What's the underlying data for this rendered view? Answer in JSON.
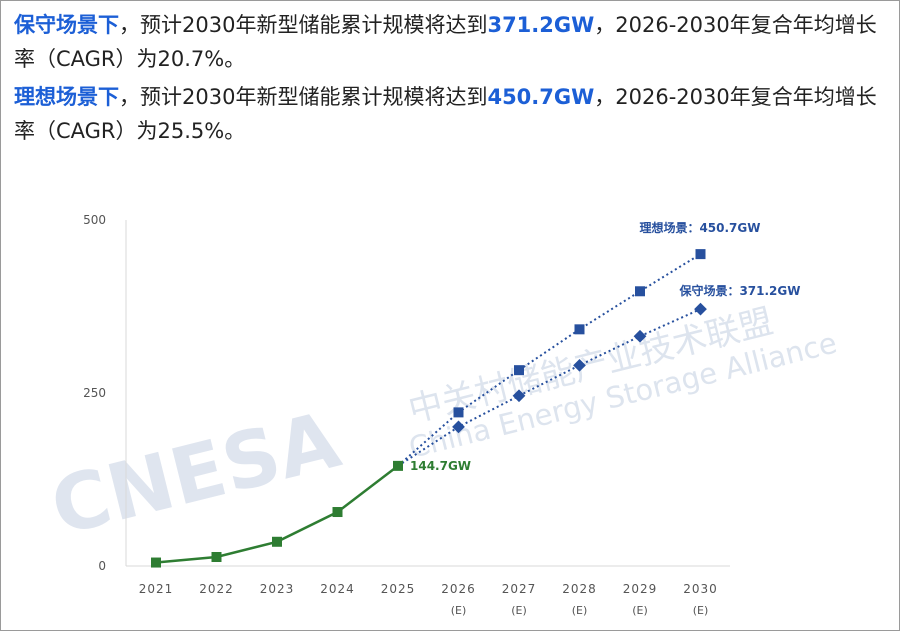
{
  "text": {
    "p1_scenario": "保守场景下",
    "p1_a": "，预计2030年新型储能累计规模将达到",
    "p1_value": "371.2GW",
    "p1_b": "，2026-2030年复合年均增长率（CAGR）为20.7%。",
    "p2_scenario": "理想场景下",
    "p2_a": "，预计2030年新型储能累计规模将达到",
    "p2_value": "450.7GW",
    "p2_b": "，2026-2030年复合年均增长率（CAGR）为25.5%。"
  },
  "watermark": {
    "logo": "CNESA",
    "cn": "中关村储能产业技术联盟",
    "en": "China Energy Storage Alliance"
  },
  "colors": {
    "highlight": "#1c5fd6",
    "actual": "#2e7d32",
    "forecast": "#27509e",
    "axis_text": "#555555",
    "grid": "#d9d9d9"
  },
  "chart_data": {
    "type": "line",
    "categories": [
      "2021",
      "2022",
      "2023",
      "2024",
      "2025",
      "2026",
      "2027",
      "2028",
      "2029",
      "2030"
    ],
    "category_sublabels": [
      "",
      "",
      "",
      "",
      "",
      "(E)",
      "(E)",
      "(E)",
      "(E)",
      "(E)"
    ],
    "ylim": [
      0,
      500
    ],
    "yticks": [
      0,
      250,
      500
    ],
    "grid": false,
    "series": [
      {
        "marker": "square",
        "style": "solid",
        "color": "#2e7d32",
        "x": [
          "2021",
          "2022",
          "2023",
          "2024",
          "2025"
        ],
        "values": [
          5,
          13,
          35,
          78,
          144.7
        ]
      },
      {
        "marker": "square",
        "style": "dotted",
        "color": "#27509e",
        "x": [
          "2025",
          "2026",
          "2027",
          "2028",
          "2029",
          "2030"
        ],
        "values": [
          144.7,
          222,
          283,
          342,
          397,
          450.7
        ]
      },
      {
        "marker": "diamond",
        "style": "dotted",
        "color": "#27509e",
        "x": [
          "2025",
          "2026",
          "2027",
          "2028",
          "2029",
          "2030"
        ],
        "values": [
          144.7,
          201,
          246,
          290,
          332,
          371.2
        ]
      }
    ],
    "annotations": [
      {
        "text": "144.7GW",
        "x": "2025",
        "y": 144.7,
        "color": "#2e7d32"
      },
      {
        "text": "理想场景：450.7GW",
        "x": "2030",
        "y": 450.7,
        "color": "#27509e"
      },
      {
        "text": "保守场景：371.2GW",
        "x": "2030",
        "y": 371.2,
        "color": "#27509e"
      }
    ]
  }
}
